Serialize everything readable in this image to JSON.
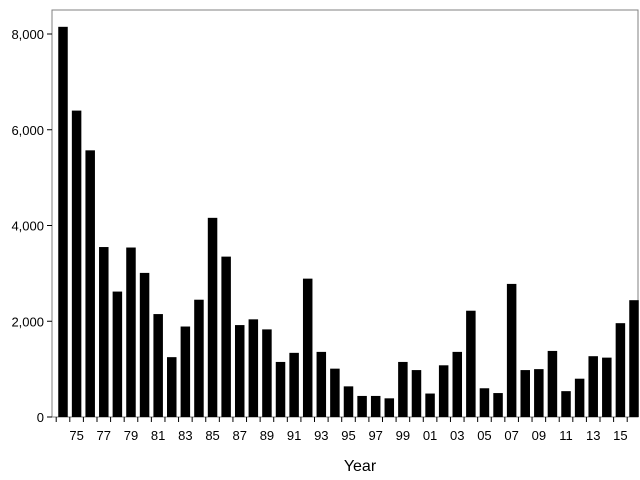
{
  "chart_data": {
    "type": "bar",
    "title": "",
    "xlabel": "Year",
    "ylabel": "",
    "ylim": [
      0,
      8000
    ],
    "yticks": [
      0,
      2000,
      4000,
      6000,
      8000
    ],
    "ytick_labels": [
      "0",
      "2,000",
      "4,000",
      "6,000",
      "8,000"
    ],
    "categories": [
      "74",
      "75",
      "76",
      "77",
      "78",
      "79",
      "80",
      "81",
      "82",
      "83",
      "84",
      "85",
      "86",
      "87",
      "88",
      "89",
      "90",
      "91",
      "92",
      "93",
      "94",
      "95",
      "96",
      "97",
      "98",
      "99",
      "00",
      "01",
      "02",
      "03",
      "04",
      "05",
      "06",
      "07",
      "08",
      "09",
      "10",
      "11",
      "12",
      "13",
      "14",
      "15",
      "16"
    ],
    "x_tick_labels": [
      "75",
      "77",
      "79",
      "81",
      "83",
      "85",
      "87",
      "89",
      "91",
      "93",
      "95",
      "97",
      "99",
      "01",
      "03",
      "05",
      "07",
      "09",
      "11",
      "13",
      "15"
    ],
    "values": [
      8150,
      6400,
      5570,
      3550,
      2620,
      3540,
      3010,
      2150,
      1250,
      1890,
      2450,
      4160,
      3350,
      1920,
      2040,
      1830,
      1150,
      1340,
      2890,
      1360,
      1010,
      640,
      440,
      440,
      390,
      1150,
      980,
      490,
      1080,
      1360,
      2220,
      600,
      500,
      2780,
      980,
      1000,
      1380,
      540,
      800,
      1270,
      1240,
      1960,
      2440
    ],
    "grid": false,
    "legend": "none",
    "bar_color": "#000000"
  }
}
